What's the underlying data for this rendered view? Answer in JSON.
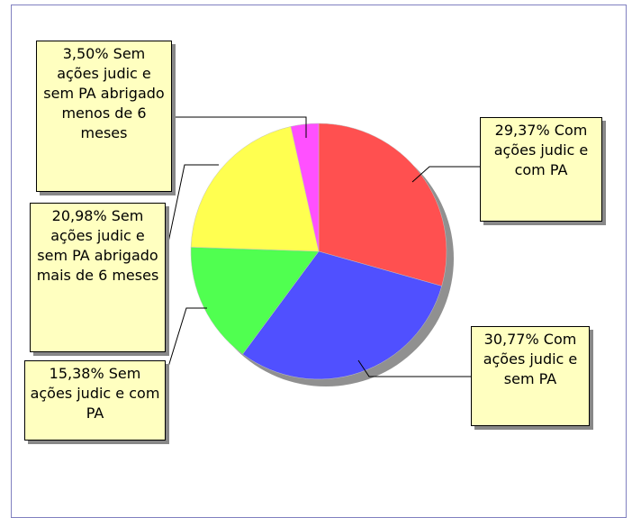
{
  "chart_data": {
    "type": "pie",
    "categories": [
      "Com ações judic e com PA",
      "Com ações judic e sem PA",
      "Sem ações judic e com  PA",
      "Sem ações judic e sem PA abrigado mais de 6 meses",
      "Sem ações judic e sem PA abrigado menos de 6 meses"
    ],
    "values": [
      29.37,
      30.77,
      15.38,
      20.98,
      3.5
    ],
    "value_labels": [
      "29,37%",
      "30,77%",
      "15,38%",
      "20,98%",
      "3,50%"
    ],
    "colors": [
      "#ff5050",
      "#5050ff",
      "#50ff50",
      "#ffff50",
      "#ff50ff"
    ]
  }
}
